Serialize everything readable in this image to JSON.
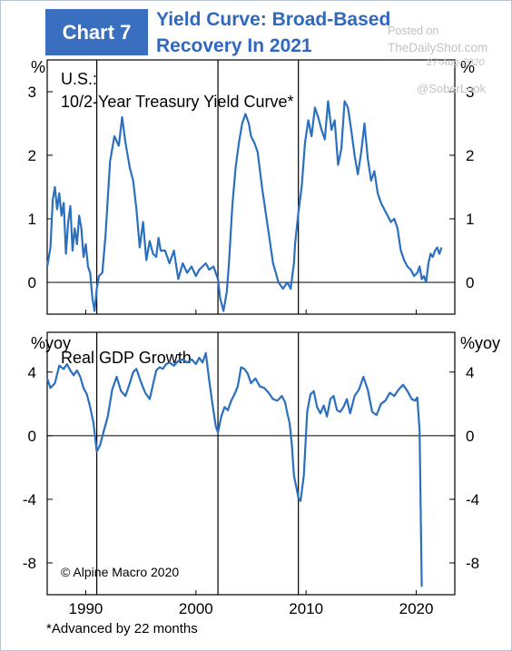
{
  "header": {
    "badge": "Chart 7",
    "title_line1": "Yield Curve: Broad-Based",
    "title_line2": "Recovery In 2021"
  },
  "watermark": {
    "posted": "Posted on",
    "site": "TheDailyShot.com",
    "date": "27-Aug-2020",
    "handle": "@SoberLook"
  },
  "footnote": "*Advanced by 22 months",
  "colors": {
    "line": "#2b6fbf",
    "badge": "#3a6fc0",
    "title": "#2f68bd"
  },
  "chart_data": [
    {
      "type": "line",
      "title": "U.S.:",
      "subtitle": "10/2-Year Treasury Yield Curve*",
      "unit": "%",
      "ylim": [
        -0.5,
        3.5
      ],
      "yticks": [
        0,
        1,
        2,
        3
      ],
      "xlim": [
        1986.5,
        2023.5
      ],
      "xticks": [
        1990,
        2000,
        2010,
        2020
      ],
      "recession_lines": [
        1991.0,
        2002.0,
        2009.3
      ],
      "series": [
        {
          "x": [
            1986.5,
            1986.8,
            1987.0,
            1987.2,
            1987.4,
            1987.6,
            1987.8,
            1988.0,
            1988.2,
            1988.4,
            1988.6,
            1988.8,
            1989.0,
            1989.2,
            1989.4,
            1989.6,
            1989.8,
            1990.0,
            1990.2,
            1990.4,
            1990.6,
            1990.8,
            1991.0,
            1991.2,
            1991.5,
            1991.8,
            1992.2,
            1992.6,
            1993.0,
            1993.3,
            1993.6,
            1994.0,
            1994.3,
            1994.6,
            1994.9,
            1995.2,
            1995.5,
            1995.8,
            1996.1,
            1996.4,
            1996.6,
            1996.8,
            1997.2,
            1997.6,
            1998.0,
            1998.4,
            1998.8,
            1999.2,
            1999.6,
            2000.0,
            2000.3,
            2000.6,
            2000.9,
            2001.2,
            2001.6,
            2002.0,
            2002.2,
            2002.5,
            2002.8,
            2003.0,
            2003.3,
            2003.6,
            2003.9,
            2004.2,
            2004.5,
            2004.8,
            2005.0,
            2005.3,
            2005.6,
            2006.0,
            2006.5,
            2007.0,
            2007.5,
            2007.9,
            2008.3,
            2008.6,
            2008.9,
            2009.0,
            2009.3,
            2009.6,
            2009.9,
            2010.2,
            2010.5,
            2010.8,
            2011.1,
            2011.4,
            2011.7,
            2012.0,
            2012.3,
            2012.6,
            2012.9,
            2013.2,
            2013.5,
            2013.8,
            2014.1,
            2014.4,
            2014.7,
            2015.0,
            2015.3,
            2015.6,
            2015.9,
            2016.2,
            2016.5,
            2016.8,
            2017.1,
            2017.4,
            2017.7,
            2018.0,
            2018.3,
            2018.6,
            2018.9,
            2019.2,
            2019.5,
            2019.8,
            2020.1,
            2020.3,
            2020.5,
            2020.7,
            2020.9,
            2021.1,
            2021.3,
            2021.5,
            2021.7,
            2021.9,
            2022.1,
            2022.3
          ],
          "y": [
            0.25,
            0.55,
            1.3,
            1.5,
            1.15,
            1.4,
            1.05,
            1.25,
            0.45,
            0.95,
            1.2,
            0.5,
            0.85,
            0.6,
            1.05,
            0.85,
            0.4,
            0.6,
            0.25,
            0.15,
            -0.25,
            -0.45,
            -0.1,
            0.1,
            0.15,
            0.75,
            1.9,
            2.3,
            2.15,
            2.6,
            2.2,
            1.8,
            1.6,
            1.15,
            0.55,
            0.95,
            0.35,
            0.65,
            0.45,
            0.4,
            0.7,
            0.5,
            0.5,
            0.3,
            0.5,
            0.05,
            0.3,
            0.15,
            0.25,
            0.1,
            0.2,
            0.25,
            0.3,
            0.2,
            0.25,
            0.05,
            -0.25,
            -0.45,
            -0.15,
            0.3,
            1.2,
            1.8,
            2.2,
            2.5,
            2.65,
            2.5,
            2.3,
            2.2,
            2.05,
            1.5,
            0.9,
            0.3,
            0.0,
            -0.1,
            0.0,
            -0.1,
            0.3,
            0.6,
            1.1,
            1.5,
            2.2,
            2.55,
            2.3,
            2.75,
            2.6,
            2.4,
            2.25,
            2.85,
            2.4,
            2.55,
            1.85,
            2.1,
            2.85,
            2.75,
            2.4,
            2.0,
            1.7,
            2.05,
            2.5,
            1.95,
            1.6,
            1.75,
            1.4,
            1.25,
            1.15,
            1.05,
            0.95,
            1.0,
            0.85,
            0.5,
            0.35,
            0.25,
            0.2,
            0.1,
            0.15,
            0.25,
            0.05,
            0.1,
            0.0,
            0.3,
            0.45,
            0.4,
            0.5,
            0.55,
            0.45,
            0.55
          ]
        }
      ]
    },
    {
      "type": "line",
      "title": "Real GDP Growth",
      "unit": "%yoy",
      "ylim": [
        -10,
        6.5
      ],
      "yticks": [
        4,
        0,
        -4,
        -8
      ],
      "xlim": [
        1986.5,
        2023.5
      ],
      "xticks": [
        1990,
        2000,
        2010,
        2020
      ],
      "recession_lines": [
        1991.0,
        2002.0,
        2009.3
      ],
      "annotation": "© Alpine Macro 2020",
      "series": [
        {
          "x": [
            1986.5,
            1986.8,
            1987.2,
            1987.6,
            1988.0,
            1988.3,
            1988.6,
            1988.9,
            1989.2,
            1989.5,
            1989.8,
            1990.1,
            1990.4,
            1990.7,
            1991.0,
            1991.3,
            1991.6,
            1992.0,
            1992.4,
            1992.8,
            1993.2,
            1993.6,
            1994.0,
            1994.3,
            1994.6,
            1995.0,
            1995.4,
            1995.8,
            1996.1,
            1996.4,
            1996.7,
            1997.0,
            1997.3,
            1997.6,
            1998.0,
            1998.4,
            1998.8,
            1999.2,
            1999.6,
            2000.0,
            2000.3,
            2000.6,
            2000.9,
            2001.2,
            2001.5,
            2001.8,
            2002.0,
            2002.3,
            2002.6,
            2002.9,
            2003.2,
            2003.5,
            2003.8,
            2004.1,
            2004.4,
            2004.7,
            2005.0,
            2005.4,
            2005.8,
            2006.2,
            2006.6,
            2007.0,
            2007.4,
            2007.8,
            2008.1,
            2008.3,
            2008.5,
            2008.7,
            2008.9,
            2009.1,
            2009.3,
            2009.5,
            2009.8,
            2010.1,
            2010.4,
            2010.7,
            2011.0,
            2011.3,
            2011.6,
            2011.9,
            2012.2,
            2012.5,
            2012.8,
            2013.1,
            2013.4,
            2013.7,
            2014.0,
            2014.4,
            2014.8,
            2015.2,
            2015.6,
            2016.0,
            2016.4,
            2016.8,
            2017.2,
            2017.6,
            2018.0,
            2018.4,
            2018.8,
            2019.2,
            2019.6,
            2019.9,
            2020.1,
            2020.3,
            2020.5
          ],
          "y": [
            3.6,
            3.0,
            3.3,
            4.4,
            4.2,
            4.5,
            4.1,
            3.8,
            4.1,
            3.7,
            3.0,
            2.6,
            1.8,
            0.8,
            -1.0,
            -0.6,
            0.2,
            1.2,
            2.9,
            3.7,
            2.8,
            2.5,
            3.3,
            4.0,
            4.2,
            3.4,
            2.7,
            2.3,
            3.2,
            4.1,
            4.3,
            4.2,
            4.5,
            4.6,
            4.4,
            4.7,
            4.8,
            4.6,
            4.8,
            4.5,
            4.9,
            4.6,
            5.2,
            3.5,
            2.0,
            0.6,
            0.2,
            1.2,
            1.8,
            1.6,
            2.2,
            2.6,
            3.1,
            4.3,
            4.2,
            3.9,
            3.3,
            3.6,
            3.1,
            3.0,
            2.7,
            2.3,
            2.2,
            2.5,
            2.1,
            1.4,
            0.8,
            -0.5,
            -2.5,
            -3.2,
            -3.9,
            -4.1,
            -2.5,
            1.5,
            2.6,
            2.8,
            1.8,
            1.4,
            1.9,
            1.2,
            2.3,
            2.5,
            1.6,
            1.5,
            1.8,
            2.3,
            1.4,
            2.5,
            2.9,
            3.7,
            2.9,
            1.5,
            1.3,
            2.0,
            2.2,
            2.7,
            2.5,
            2.9,
            3.2,
            2.8,
            2.3,
            2.2,
            2.4,
            0.3,
            -9.5
          ]
        }
      ]
    }
  ]
}
